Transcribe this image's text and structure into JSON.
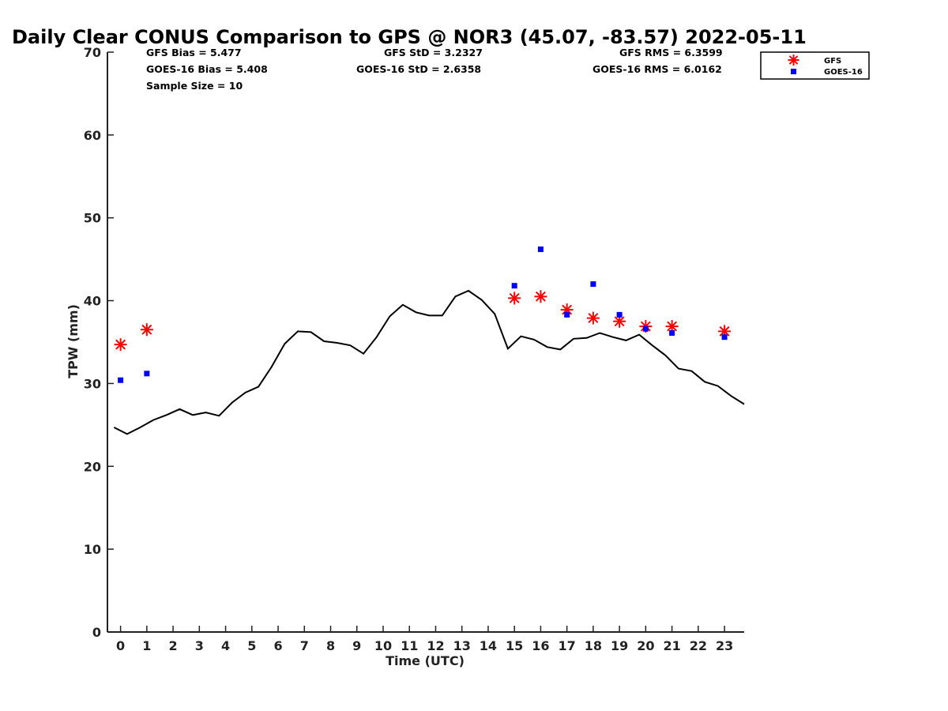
{
  "colors": {
    "gfs": "#ff0000",
    "goes": "#0000ff",
    "gps": "#000000"
  },
  "chart_data": {
    "type": "scatter",
    "title": "Daily Clear CONUS Comparison to GPS @ NOR3 (45.07, -83.57) 2022-05-11",
    "xlabel": "Time (UTC)",
    "ylabel": "TPW (mm)",
    "xlim": [
      -0.5,
      23.75
    ],
    "ylim": [
      0,
      70
    ],
    "xticks": [
      0,
      1,
      2,
      3,
      4,
      5,
      6,
      7,
      8,
      9,
      10,
      11,
      12,
      13,
      14,
      15,
      16,
      17,
      18,
      19,
      20,
      21,
      22,
      23
    ],
    "yticks": [
      0,
      10,
      20,
      30,
      40,
      50,
      60,
      70
    ],
    "grid": false,
    "legend_position": "top-right",
    "stats": {
      "gfs_bias": "GFS Bias = 5.477",
      "goes_bias": "GOES-16 Bias = 5.408",
      "sample_size": "Sample Size = 10",
      "gfs_std": "GFS StD = 3.2327",
      "goes_std": "GOES-16 StD = 2.6358",
      "gfs_rms": "GFS RMS = 6.3599",
      "goes_rms": "GOES-16 RMS = 6.0162"
    },
    "series": [
      {
        "name": "GFS",
        "marker": "asterisk",
        "x": [
          0,
          1,
          15,
          16,
          17,
          18,
          19,
          20,
          21,
          23
        ],
        "y": [
          34.7,
          36.5,
          40.3,
          40.5,
          38.9,
          37.9,
          37.5,
          36.9,
          36.9,
          36.3
        ]
      },
      {
        "name": "GOES-16",
        "marker": "square",
        "x": [
          0,
          1,
          15,
          16,
          17,
          18,
          19,
          20,
          21,
          23
        ],
        "y": [
          30.4,
          31.2,
          41.8,
          46.2,
          38.3,
          42.0,
          38.3,
          36.6,
          36.1,
          35.6
        ]
      },
      {
        "marker": "line",
        "x": [
          -0.25,
          0.25,
          0.75,
          1.25,
          1.75,
          2.25,
          2.75,
          3.25,
          3.75,
          4.25,
          4.75,
          5.25,
          5.75,
          6.25,
          6.75,
          7.25,
          7.75,
          8.25,
          8.75,
          9.25,
          9.75,
          10.25,
          10.75,
          11.25,
          11.75,
          12.25,
          12.75,
          13.25,
          13.75,
          14.25,
          14.75,
          15.25,
          15.75,
          16.25,
          16.75,
          17.25,
          17.75,
          18.25,
          18.75,
          19.25,
          19.75,
          20.25,
          20.75,
          21.25,
          21.75,
          22.25,
          22.75,
          23.25,
          23.75
        ],
        "y": [
          24.7,
          23.9,
          24.7,
          25.6,
          26.2,
          26.9,
          26.2,
          26.5,
          26.1,
          27.7,
          28.9,
          29.6,
          32.0,
          34.8,
          36.3,
          36.2,
          35.1,
          34.9,
          34.6,
          33.6,
          35.6,
          38.1,
          39.5,
          38.6,
          38.2,
          38.2,
          40.5,
          41.2,
          40.1,
          38.4,
          34.2,
          35.7,
          35.3,
          34.4,
          34.1,
          35.4,
          35.5,
          36.1,
          35.6,
          35.2,
          35.9,
          34.6,
          33.4,
          31.8,
          31.5,
          30.2,
          29.7,
          28.5,
          27.5
        ]
      }
    ]
  }
}
